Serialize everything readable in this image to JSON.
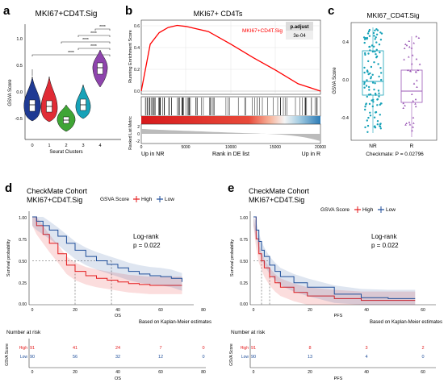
{
  "panels": {
    "a": {
      "letter": "a",
      "title": "MKI67+CD4T.Sig",
      "ylabel": "GSVA Score",
      "xlabel": "Seurat Clusters",
      "categories": [
        "0",
        "1",
        "2",
        "3",
        "4"
      ],
      "yticks": [
        "1.0",
        "0.5",
        "0.0",
        "-0.5"
      ],
      "sig_labels": [
        "****",
        "****",
        "****",
        "****",
        "****"
      ]
    },
    "b": {
      "letter": "b",
      "title": "MKI67+ CD4Ts",
      "legend": "MKI67+CD4T.Sig",
      "padj_header": "p.adjust",
      "padj_value": "3e-04",
      "ylabel_top": "Running Enrichment Score",
      "ylabel_bottom": "Ranked List Metric",
      "yticks_top": [
        "0.6",
        "0.4",
        "0.2",
        "0.0"
      ],
      "yticks_bottom": [
        "2",
        "0",
        "-2"
      ],
      "xticks": [
        "0",
        "5000",
        "10000",
        "15000",
        "20000"
      ],
      "xlabel": "Rank in DE list",
      "left_label": "Up in NR",
      "right_label": "Up in R"
    },
    "c": {
      "letter": "c",
      "title": "MKI67_CD4T.Sig",
      "ylabel": "GSVA Score",
      "yticks": [
        "0.4",
        "0.0",
        "-0.4"
      ],
      "categories": [
        "NR",
        "R"
      ],
      "footnote": "Checkmate: P = 0.02796",
      "colors": {
        "NR": "#17A2B8",
        "R": "#9B59B6"
      }
    },
    "d": {
      "letter": "d",
      "title1": "CheckMate Cohort",
      "title2": "MKI67+CD4T.Sig",
      "legend_title": "GSVA Score",
      "legend_high": "High",
      "legend_low": "Low",
      "ylabel": "Survival probability",
      "xlabel": "OS",
      "yticks": [
        "1.00",
        "0.75",
        "0.50",
        "0.25",
        "0.00"
      ],
      "xticks": [
        "0",
        "20",
        "40",
        "60",
        "80"
      ],
      "stat1": "Log-rank",
      "stat2": "p = 0.022",
      "note": "Based on Kaplan-Meier estimates",
      "risk_title": "Number at risk",
      "risk_ylabel": "GSVA Score",
      "risk_high_label": "High",
      "risk_low_label": "Low",
      "risk_high": [
        "91",
        "41",
        "24",
        "7",
        "0"
      ],
      "risk_low": [
        "90",
        "56",
        "32",
        "12",
        "0"
      ],
      "risk_xticks": [
        "0",
        "20",
        "40",
        "60",
        "80"
      ],
      "risk_xlabel": "OS"
    },
    "e": {
      "letter": "e",
      "title1": "CheckMate Cohort",
      "title2": "MKI67+CD4T.Sig",
      "legend_title": "GSVA Score",
      "legend_high": "High",
      "legend_low": "Low",
      "ylabel": "Survival probability",
      "xlabel": "PFS",
      "yticks": [
        "1.00",
        "0.75",
        "0.50",
        "0.25",
        "0.00"
      ],
      "xticks": [
        "0",
        "20",
        "40",
        "60"
      ],
      "stat1": "Log-rank",
      "stat2": "p = 0.022",
      "note": "Based on Kaplan-Meier estimates",
      "risk_title": "Number at risk",
      "risk_ylabel": "GSVA Score",
      "risk_high_label": "High",
      "risk_low_label": "Low",
      "risk_high": [
        "91",
        "8",
        "3",
        "2"
      ],
      "risk_low": [
        "90",
        "13",
        "4",
        "0"
      ],
      "risk_xticks": [
        "0",
        "20",
        "40",
        "60"
      ],
      "risk_xlabel": "PFS"
    }
  },
  "colors": {
    "cluster0": "#1F3A93",
    "cluster1": "#E02B35",
    "cluster2": "#3FA535",
    "cluster3": "#17A2B8",
    "cluster4": "#8E44AD",
    "high": "#E41A1C",
    "low": "#1F4E9A",
    "running": "#FF0000"
  },
  "chart_data": [
    {
      "type": "violin",
      "panel": "a",
      "categories": [
        "0",
        "1",
        "2",
        "3",
        "4"
      ],
      "medians": [
        -0.2,
        -0.22,
        -0.45,
        -0.2,
        0.6
      ],
      "ylim": [
        -0.7,
        1.2
      ]
    },
    {
      "type": "line",
      "panel": "b",
      "x": [
        0,
        1000,
        2000,
        3000,
        4000,
        5000,
        7500,
        10000,
        12500,
        15000,
        17500,
        20000
      ],
      "y": [
        0,
        0.45,
        0.56,
        0.61,
        0.63,
        0.62,
        0.57,
        0.45,
        0.32,
        0.2,
        0.07,
        0.0
      ],
      "xlim": [
        0,
        20000
      ],
      "ylim": [
        0,
        0.68
      ]
    },
    {
      "type": "box",
      "panel": "c",
      "categories": [
        "NR",
        "R"
      ],
      "medians": [
        -0.02,
        -0.12
      ],
      "q1": [
        -0.23,
        -0.28
      ],
      "q3": [
        0.22,
        0.05
      ],
      "ylim": [
        -0.55,
        0.55
      ]
    },
    {
      "type": "line",
      "panel": "d",
      "series": [
        {
          "name": "High",
          "x": [
            0,
            2,
            5,
            8,
            12,
            16,
            20,
            25,
            30,
            35,
            40,
            45,
            50,
            55,
            60,
            65,
            70
          ],
          "y": [
            1.0,
            0.9,
            0.8,
            0.7,
            0.58,
            0.45,
            0.38,
            0.33,
            0.3,
            0.28,
            0.26,
            0.24,
            0.23,
            0.22,
            0.22,
            0.22,
            0.22
          ]
        },
        {
          "name": "Low",
          "x": [
            0,
            2,
            5,
            8,
            12,
            16,
            20,
            25,
            30,
            35,
            40,
            45,
            50,
            55,
            60,
            65,
            70
          ],
          "y": [
            1.0,
            0.95,
            0.9,
            0.85,
            0.78,
            0.7,
            0.62,
            0.55,
            0.5,
            0.46,
            0.42,
            0.38,
            0.35,
            0.33,
            0.32,
            0.3,
            0.26
          ]
        }
      ],
      "xlim": [
        0,
        80
      ],
      "ylim": [
        0,
        1
      ]
    },
    {
      "type": "line",
      "panel": "e",
      "series": [
        {
          "name": "High",
          "x": [
            0,
            1,
            2,
            3,
            4,
            6,
            8,
            10,
            15,
            20,
            30,
            40,
            50,
            60
          ],
          "y": [
            1.0,
            0.75,
            0.58,
            0.5,
            0.42,
            0.32,
            0.25,
            0.2,
            0.14,
            0.1,
            0.07,
            0.05,
            0.05,
            0.05
          ]
        },
        {
          "name": "Low",
          "x": [
            0,
            1,
            2,
            3,
            4,
            6,
            8,
            10,
            15,
            20,
            30,
            40,
            50,
            60
          ],
          "y": [
            1.0,
            0.85,
            0.72,
            0.62,
            0.55,
            0.45,
            0.38,
            0.32,
            0.25,
            0.2,
            0.12,
            0.08,
            0.07,
            0.07
          ]
        }
      ],
      "xlim": [
        0,
        65
      ],
      "ylim": [
        0,
        1
      ]
    }
  ]
}
